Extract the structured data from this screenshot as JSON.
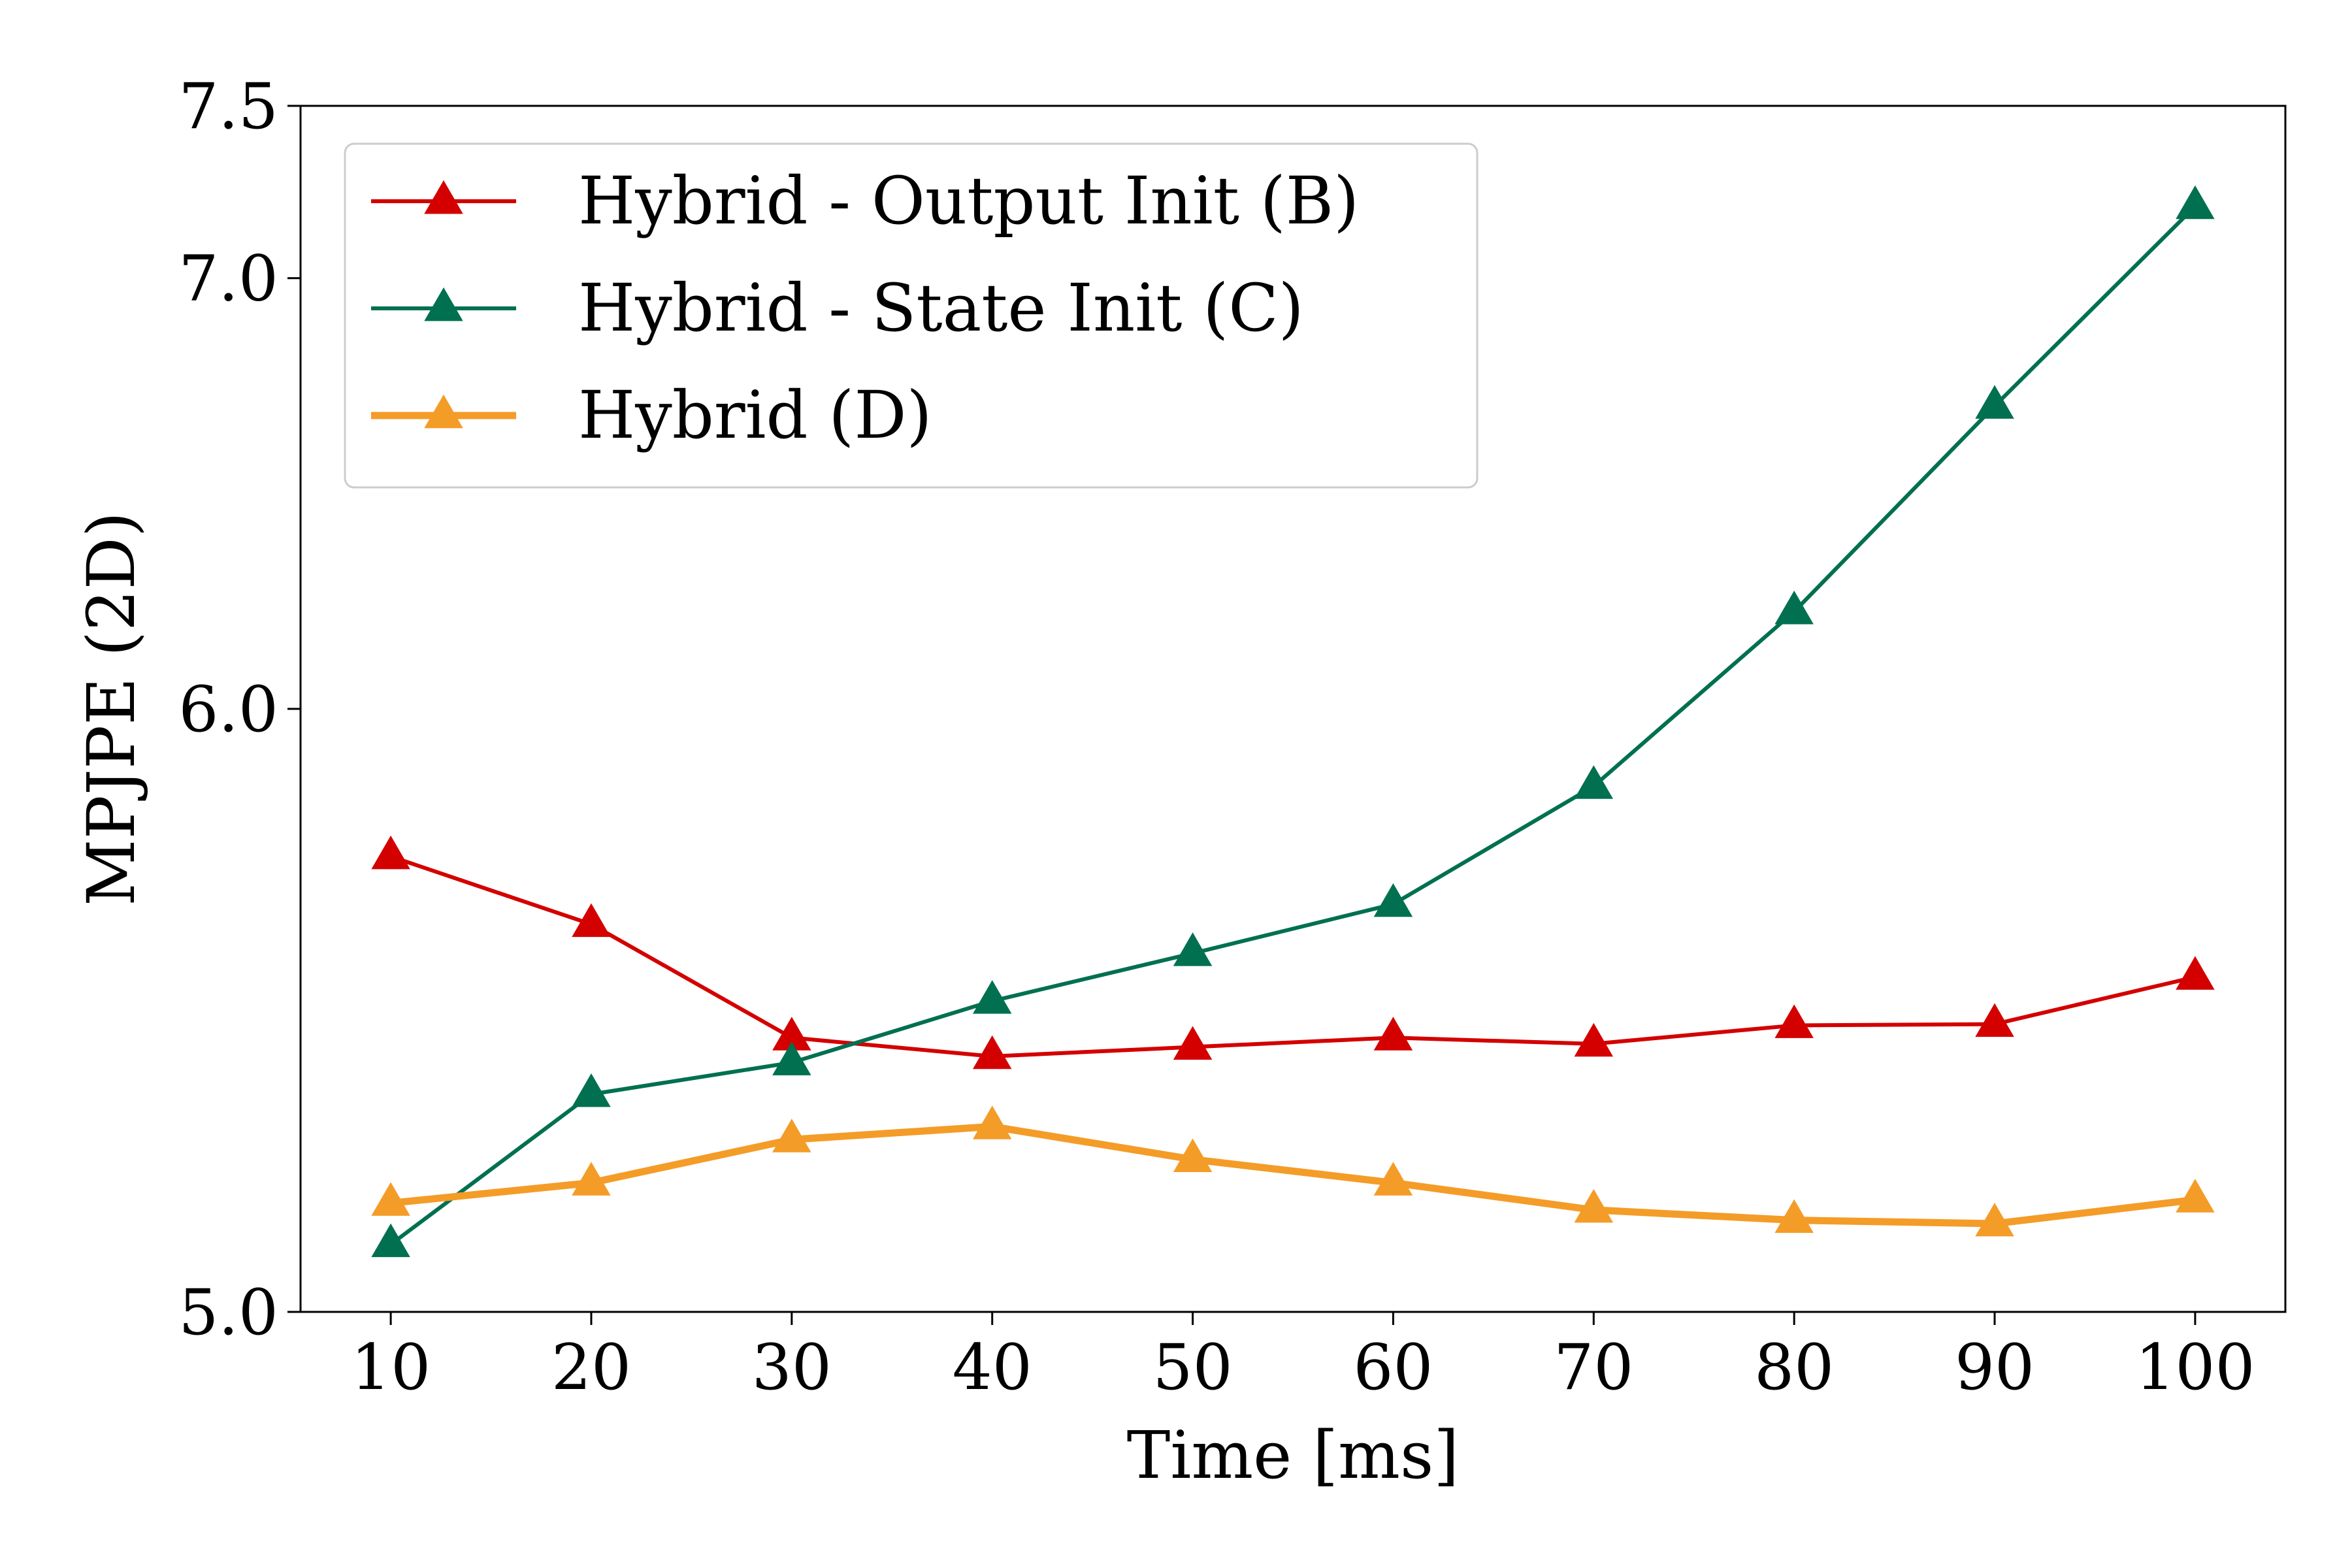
{
  "chart_data": {
    "type": "line",
    "xlabel": "Time [ms]",
    "ylabel": "MPJPE (2D)",
    "x": [
      10,
      20,
      30,
      40,
      50,
      60,
      70,
      80,
      90,
      100
    ],
    "xticks": [
      "10",
      "20",
      "30",
      "40",
      "50",
      "60",
      "70",
      "80",
      "90",
      "100"
    ],
    "xlim": [
      5.5,
      104.5
    ],
    "ylim": [
      5.0,
      7.5
    ],
    "y_scale": "reciprocal",
    "yticks": [
      "5.0",
      "6.0",
      "7.0",
      "7.5"
    ],
    "grid": false,
    "legend_position": "top-left",
    "marker": "triangle",
    "series": [
      {
        "name": "Hybrid - Output Init (B)",
        "color": "#d40000",
        "values": [
          5.72,
          5.6,
          5.41,
          5.38,
          5.395,
          5.41,
          5.4,
          5.43,
          5.432,
          5.51
        ]
      },
      {
        "name": "Hybrid - State Init (C)",
        "color": "#007050",
        "values": [
          5.095,
          5.32,
          5.37,
          5.47,
          5.55,
          5.635,
          5.85,
          6.2,
          6.67,
          7.2
        ]
      },
      {
        "name": "Hybrid (D)",
        "color": "#f49c28",
        "values": [
          5.155,
          5.185,
          5.25,
          5.27,
          5.22,
          5.185,
          5.145,
          5.13,
          5.125,
          5.16
        ]
      }
    ]
  }
}
